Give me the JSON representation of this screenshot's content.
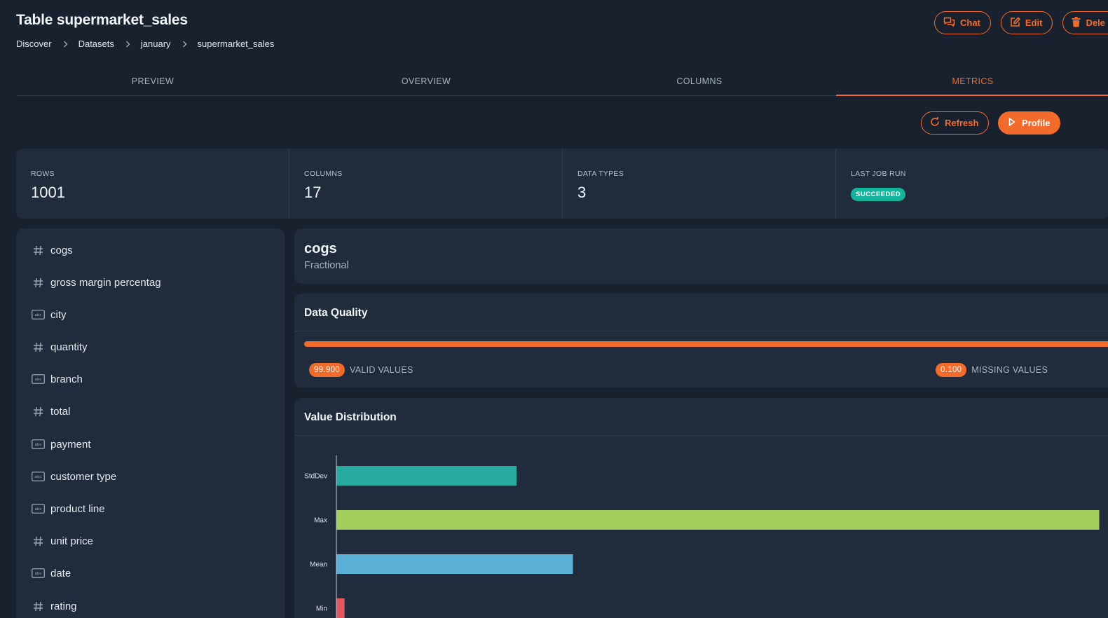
{
  "header": {
    "title": "Table supermarket_sales",
    "breadcrumb": [
      "Discover",
      "Datasets",
      "january",
      "supermarket_sales"
    ],
    "actions": [
      {
        "label": "Chat",
        "icon": "chat-icon"
      },
      {
        "label": "Edit",
        "icon": "edit-icon"
      },
      {
        "label": "Dele",
        "icon": "trash-icon"
      }
    ]
  },
  "tabs": [
    "PREVIEW",
    "OVERVIEW",
    "COLUMNS",
    "METRICS"
  ],
  "active_tab": "METRICS",
  "toolbar": {
    "refresh_label": "Refresh",
    "profile_label": "Profile"
  },
  "stats": {
    "rows_label": "ROWS",
    "rows_value": "1001",
    "columns_label": "COLUMNS",
    "columns_value": "17",
    "types_label": "DATA TYPES",
    "types_value": "3",
    "last_run_label": "LAST JOB RUN",
    "last_run_status": "SUCCEEDED"
  },
  "columns": [
    {
      "name": "cogs",
      "type": "numeric"
    },
    {
      "name": "gross margin percentag",
      "type": "numeric"
    },
    {
      "name": "city",
      "type": "string"
    },
    {
      "name": "quantity",
      "type": "numeric"
    },
    {
      "name": "branch",
      "type": "string"
    },
    {
      "name": "total",
      "type": "numeric"
    },
    {
      "name": "payment",
      "type": "string"
    },
    {
      "name": "customer type",
      "type": "string"
    },
    {
      "name": "product line",
      "type": "string"
    },
    {
      "name": "unit price",
      "type": "numeric"
    },
    {
      "name": "date",
      "type": "string"
    },
    {
      "name": "rating",
      "type": "numeric"
    }
  ],
  "selected_column": {
    "name": "cogs",
    "type": "Fractional"
  },
  "data_quality": {
    "heading": "Data Quality",
    "valid_pct": 99.9,
    "valid_value": "99.900",
    "valid_label": "VALID VALUES",
    "missing_value": "0.100",
    "missing_label": "MISSING VALUES"
  },
  "value_distribution": {
    "heading": "Value Distribution"
  },
  "chart_data": {
    "type": "bar",
    "orientation": "horizontal",
    "categories": [
      "StdDev",
      "Max",
      "Mean",
      "Min"
    ],
    "values": [
      234.2,
      993,
      307.6,
      10.2
    ],
    "colors": [
      "#27aaa0",
      "#a2cf5c",
      "#5ab0d6",
      "#e15a5f"
    ],
    "xlim": [
      0,
      993
    ],
    "grid": false
  },
  "colors": {
    "accent": "#f26b2a",
    "success": "#14b39c",
    "background": "#19212e",
    "panel": "#202b3c"
  }
}
